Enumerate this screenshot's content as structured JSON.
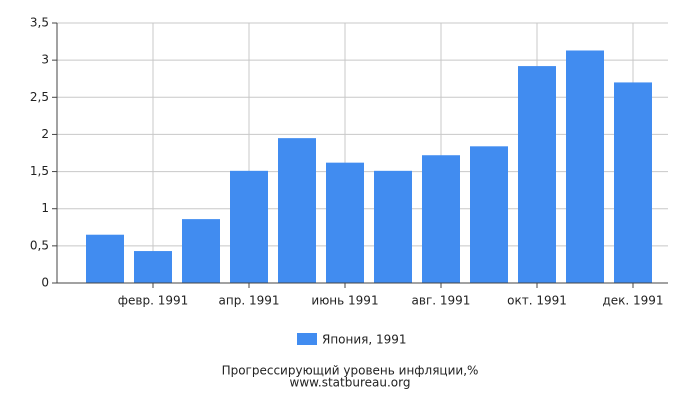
{
  "chart_data": {
    "type": "bar",
    "categories": [
      null,
      "февр. 1991",
      null,
      "апр. 1991",
      null,
      "июнь 1991",
      null,
      "авг. 1991",
      null,
      "окт. 1991",
      null,
      "дек. 1991"
    ],
    "series": [
      {
        "name": "Япония, 1991",
        "color": "#418cf0",
        "values": [
          0.65,
          0.43,
          0.86,
          1.51,
          1.95,
          1.62,
          1.51,
          1.72,
          1.84,
          2.92,
          3.13,
          2.7
        ]
      }
    ],
    "ylim": [
      0,
      3.5
    ],
    "yticks": [
      0,
      {
        "value": 0.5,
        "label": "0,5"
      },
      1,
      {
        "value": 1.5,
        "label": "1,5"
      },
      2,
      {
        "value": 2.5,
        "label": "2,5"
      },
      3,
      {
        "value": 3.5,
        "label": "3,5"
      }
    ],
    "grid": true,
    "title": "Прогрессирующий уровень инфляции,%",
    "subtitle": "www.statbureau.org"
  }
}
